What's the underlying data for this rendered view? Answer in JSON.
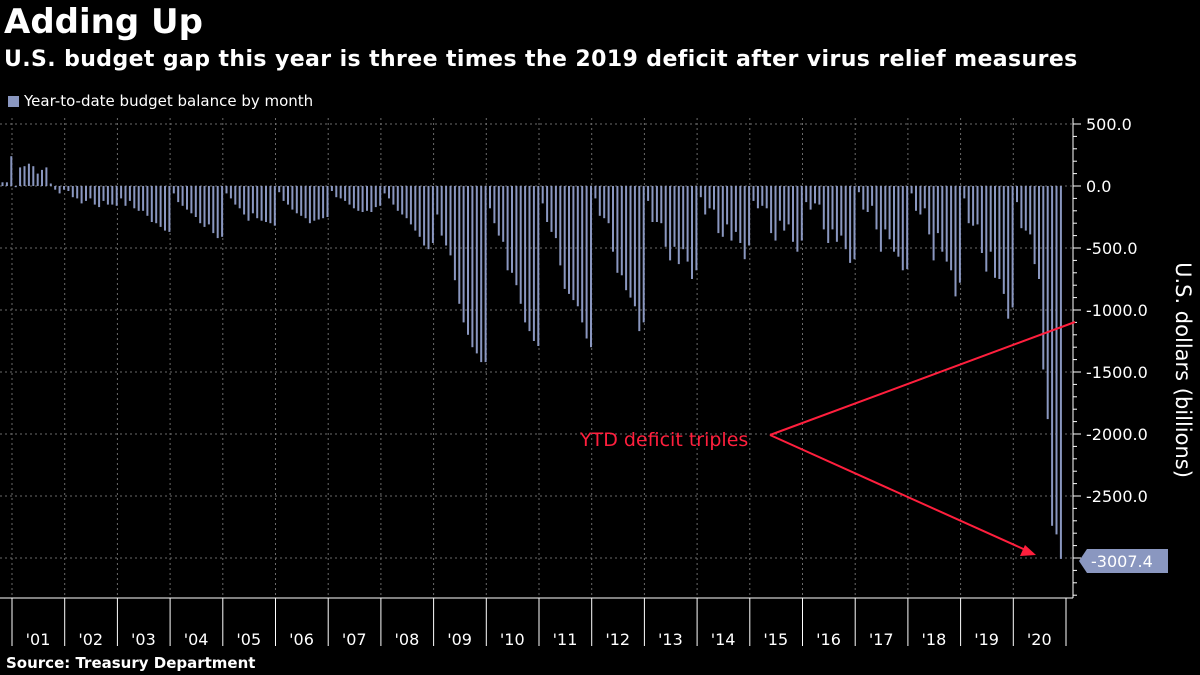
{
  "title": "Adding Up",
  "subtitle": "U.S. budget gap this year is three times the 2019 deficit after virus relief measures",
  "legend_label": "Year-to-date budget balance by month",
  "source": "Source: Treasury Department",
  "colors": {
    "bar": "#8a97c0",
    "annotation": "#ff1f3d",
    "grid": "#6a6a6a",
    "callout_bg": "#8a97c0"
  },
  "chart_data": {
    "type": "bar",
    "ylabel": "U.S. dollars (billions)",
    "ylim": [
      -3300,
      570
    ],
    "y_ticks": [
      "500.0",
      "0.0",
      "-500.0",
      "-1000.0",
      "-1500.0",
      "-2000.0",
      "-2500.0"
    ],
    "y_tick_values": [
      500,
      0,
      -500,
      -1000,
      -1500,
      -2000,
      -2500
    ],
    "y_axis_side": "right",
    "grid": true,
    "x_labels": [
      "'01",
      "'02",
      "'03",
      "'04",
      "'05",
      "'06",
      "'07",
      "'08",
      "'09",
      "'10",
      "'11",
      "'12",
      "'13",
      "'14",
      "'15",
      "'16",
      "'17",
      "'18",
      "'19",
      "'20"
    ],
    "series": [
      {
        "x": "fiscal years 2000-2020, months Oct-Sep",
        "years": [
          {
            "fy": 2000,
            "values": [
              230,
              3,
              -5,
              -20,
              15,
              80,
              35,
              0,
              30,
              30,
              30,
              240
            ]
          },
          {
            "fy": 2001,
            "values": [
              -10,
              150,
              160,
              180,
              160,
              100,
              130,
              150,
              20,
              -30,
              -60,
              -30
            ]
          },
          {
            "fy": 2002,
            "values": [
              -40,
              -90,
              -100,
              -140,
              -120,
              -100,
              -150,
              -170,
              -120,
              -150,
              -150,
              -160
            ]
          },
          {
            "fy": 2003,
            "values": [
              -100,
              -160,
              -120,
              -180,
              -200,
              -200,
              -240,
              -290,
              -300,
              -330,
              -360,
              -370
            ]
          },
          {
            "fy": 2004,
            "values": [
              -60,
              -130,
              -160,
              -190,
              -220,
              -250,
              -300,
              -330,
              -310,
              -380,
              -420,
              -410
            ]
          },
          {
            "fy": 2005,
            "values": [
              -60,
              -100,
              -150,
              -180,
              -230,
              -280,
              -220,
              -260,
              -280,
              -290,
              -300,
              -320
            ]
          },
          {
            "fy": 2006,
            "values": [
              -50,
              -120,
              -150,
              -190,
              -220,
              -240,
              -260,
              -300,
              -280,
              -270,
              -260,
              -250
            ]
          },
          {
            "fy": 2007,
            "values": [
              -40,
              -90,
              -100,
              -120,
              -150,
              -180,
              -200,
              -210,
              -200,
              -210,
              -170,
              -160
            ]
          },
          {
            "fy": 2008,
            "values": [
              -60,
              -100,
              -150,
              -200,
              -230,
              -260,
              -310,
              -360,
              -410,
              -480,
              -510,
              -460
            ]
          },
          {
            "fy": 2009,
            "values": [
              -230,
              -400,
              -480,
              -560,
              -760,
              -950,
              -1100,
              -1200,
              -1300,
              -1350,
              -1420,
              -1420
            ]
          },
          {
            "fy": 2010,
            "values": [
              -180,
              -300,
              -400,
              -450,
              -680,
              -700,
              -800,
              -950,
              -1100,
              -1170,
              -1250,
              -1290
            ]
          },
          {
            "fy": 2011,
            "values": [
              -140,
              -290,
              -370,
              -420,
              -640,
              -830,
              -870,
              -920,
              -970,
              -1100,
              -1230,
              -1300
            ]
          },
          {
            "fy": 2012,
            "values": [
              -100,
              -240,
              -260,
              -300,
              -530,
              -700,
              -720,
              -840,
              -900,
              -970,
              -1170,
              -1100
            ]
          },
          {
            "fy": 2013,
            "values": [
              -120,
              -290,
              -290,
              -300,
              -490,
              -600,
              -490,
              -630,
              -510,
              -610,
              -750,
              -680
            ]
          },
          {
            "fy": 2014,
            "values": [
              -90,
              -230,
              -180,
              -190,
              -380,
              -410,
              -310,
              -440,
              -370,
              -460,
              -590,
              -480
            ]
          },
          {
            "fy": 2015,
            "values": [
              -120,
              -180,
              -160,
              -180,
              -380,
              -440,
              -280,
              -360,
              -310,
              -450,
              -530,
              -440
            ]
          },
          {
            "fy": 2016,
            "values": [
              -130,
              -190,
              -140,
              -150,
              -350,
              -460,
              -350,
              -450,
              -400,
              -510,
              -620,
              -590
            ]
          },
          {
            "fy": 2017,
            "values": [
              -50,
              -190,
              -210,
              -160,
              -350,
              -530,
              -350,
              -430,
              -530,
              -570,
              -680,
              -670
            ]
          },
          {
            "fy": 2018,
            "values": [
              -60,
              -200,
              -230,
              -180,
              -390,
              -600,
              -380,
              -530,
              -610,
              -680,
              -890,
              -780
            ]
          },
          {
            "fy": 2019,
            "values": [
              -100,
              -300,
              -320,
              -310,
              -540,
              -690,
              -530,
              -740,
              -750,
              -870,
              -1070,
              -980
            ]
          },
          {
            "fy": 2020,
            "values": [
              -130,
              -340,
              -360,
              -390,
              -630,
              -750,
              -1480,
              -1880,
              -2740,
              -2810,
              -3007.4
            ]
          }
        ]
      }
    ],
    "last_value_label": "-3007.4",
    "annotation": "YTD deficit triples"
  }
}
